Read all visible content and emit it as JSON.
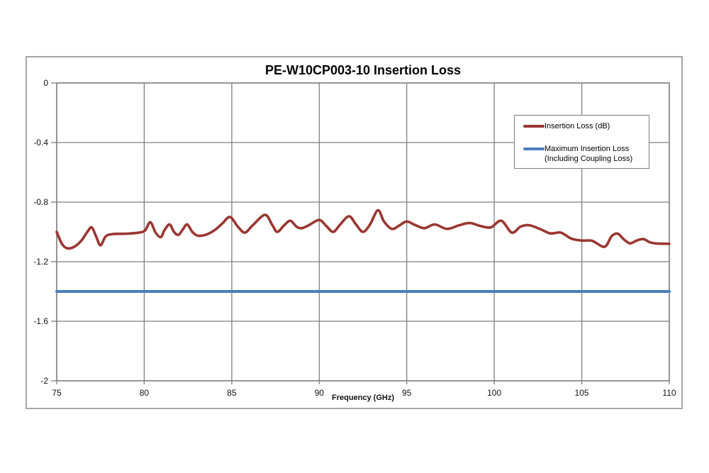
{
  "title": "PE-W10CP003-10 Insertion Loss",
  "colors": {
    "grid": "#7f7f7f",
    "plot_border": "#7f7f7f",
    "outer_border": "#a6a6a6",
    "insertion_loss_line": "#9a3631",
    "max_insertion_loss_line": "#4a7ebb",
    "text": "#000000"
  },
  "legend": {
    "items": [
      {
        "label": "Insertion Loss (dB)",
        "color": "#9a3631"
      },
      {
        "label": "Maximum Insertion Loss (Including Coupling Loss)",
        "color": "#4a7ebb"
      }
    ]
  },
  "chart_data": {
    "type": "line",
    "title": "PE-W10CP003-10 Insertion Loss",
    "xlabel": "Frequency (GHz)",
    "ylabel": "",
    "xlim": [
      75,
      110
    ],
    "ylim": [
      -2,
      0
    ],
    "grid": true,
    "legend_position": "upper right",
    "x_ticks": [
      75,
      80,
      85,
      90,
      95,
      100,
      105,
      110
    ],
    "x_tick_labels": [
      "75",
      "80",
      "85",
      "90",
      "95",
      "100",
      "105",
      "110"
    ],
    "y_ticks": [
      0,
      -0.4,
      -0.8,
      -1.2,
      -1.6,
      -2
    ],
    "y_tick_labels": [
      "0",
      "-0.4",
      "-0.8",
      "-1.2",
      "-1.6",
      "-2"
    ],
    "series": [
      {
        "name": "Insertion Loss (dB)",
        "color": "#9a3631",
        "width": 3.6,
        "smooth": true,
        "x": [
          75.0,
          75.3,
          75.6,
          76.0,
          76.4,
          76.75,
          77.0,
          77.25,
          77.5,
          77.8,
          78.2,
          79.0,
          79.7,
          80.05,
          80.35,
          80.65,
          80.95,
          81.15,
          81.45,
          81.7,
          81.95,
          82.2,
          82.45,
          82.75,
          83.05,
          83.5,
          84.0,
          84.45,
          84.9,
          85.35,
          85.75,
          86.2,
          86.9,
          87.3,
          87.6,
          88.0,
          88.35,
          88.7,
          89.0,
          89.4,
          90.0,
          90.4,
          90.8,
          91.2,
          91.7,
          92.1,
          92.5,
          92.9,
          93.35,
          93.7,
          94.15,
          94.6,
          95.0,
          95.5,
          96.0,
          96.6,
          97.3,
          98.0,
          98.6,
          99.2,
          99.8,
          100.4,
          101.0,
          101.5,
          102.0,
          102.6,
          103.2,
          103.8,
          104.4,
          105.0,
          105.6,
          106.3,
          106.7,
          107.05,
          107.4,
          107.75,
          108.1,
          108.5,
          108.9,
          109.3,
          110.0
        ],
        "y": [
          -1.0,
          -1.08,
          -1.11,
          -1.1,
          -1.06,
          -1.0,
          -0.97,
          -1.03,
          -1.09,
          -1.03,
          -1.015,
          -1.012,
          -1.005,
          -0.99,
          -0.935,
          -1.005,
          -1.035,
          -0.99,
          -0.95,
          -1.0,
          -1.02,
          -0.985,
          -0.95,
          -1.0,
          -1.025,
          -1.02,
          -0.99,
          -0.945,
          -0.9,
          -0.965,
          -1.005,
          -0.955,
          -0.885,
          -0.95,
          -1.0,
          -0.955,
          -0.925,
          -0.965,
          -0.975,
          -0.955,
          -0.92,
          -0.96,
          -1.0,
          -0.95,
          -0.895,
          -0.95,
          -1.0,
          -0.95,
          -0.855,
          -0.93,
          -0.98,
          -0.955,
          -0.93,
          -0.955,
          -0.975,
          -0.95,
          -0.98,
          -0.955,
          -0.94,
          -0.96,
          -0.97,
          -0.925,
          -1.005,
          -0.965,
          -0.955,
          -0.98,
          -1.01,
          -1.005,
          -1.045,
          -1.058,
          -1.06,
          -1.1,
          -1.03,
          -1.012,
          -1.05,
          -1.077,
          -1.06,
          -1.048,
          -1.07,
          -1.078,
          -1.08
        ]
      },
      {
        "name": "Maximum Insertion Loss (Including Coupling Loss)",
        "color": "#4a7ebb",
        "width": 4,
        "smooth": false,
        "x": [
          75,
          110
        ],
        "y": [
          -1.4,
          -1.4
        ]
      }
    ]
  }
}
